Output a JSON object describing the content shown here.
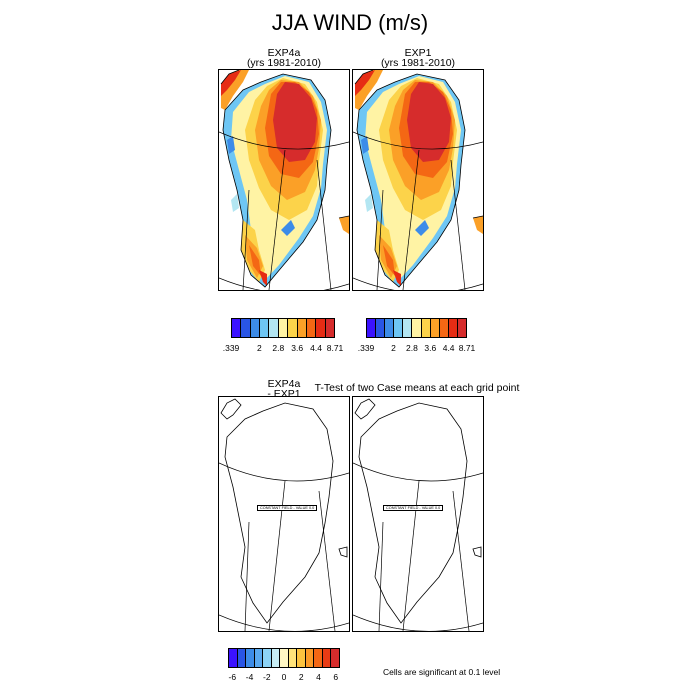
{
  "title": "JJA WIND (m/s)",
  "panels": {
    "top_left": {
      "name": "EXP4a",
      "years": "(yrs 1981-2010)"
    },
    "top_right": {
      "name": "EXP1",
      "years": "(yrs 1981-2010)"
    },
    "bottom_left": {
      "name_line1": "EXP4a",
      "name_line2": "- EXP1"
    },
    "bottom_right": {
      "title": "T-Test of two Case means at each grid point"
    }
  },
  "const_field_note": "CONSTANT FIELD - VALUE 0.0",
  "wind_colorbar": {
    "colors": [
      "#3b12ff",
      "#2955e5",
      "#3d8ce8",
      "#6ec6f4",
      "#b3e6f2",
      "#fff3a4",
      "#fcd34a",
      "#fba027",
      "#f46714",
      "#e62c14",
      "#d62c2c"
    ],
    "tick_labels": [
      ".339",
      "2",
      "2.8",
      "3.6",
      "4.4",
      "8.71"
    ]
  },
  "diff_colorbar": {
    "colors": [
      "#3b12ff",
      "#2955e5",
      "#3d8ce8",
      "#5aa9f0",
      "#8dd3f6",
      "#c6ecf4",
      "#fff7c4",
      "#ffe37a",
      "#fcc33f",
      "#fb9a27",
      "#f46714",
      "#e93b14",
      "#d62c2c"
    ],
    "tick_labels": [
      "-6",
      "-4",
      "-2",
      "0",
      "2",
      "4",
      "6"
    ]
  },
  "significance_note": "Cells are significant at 0.1 level"
}
